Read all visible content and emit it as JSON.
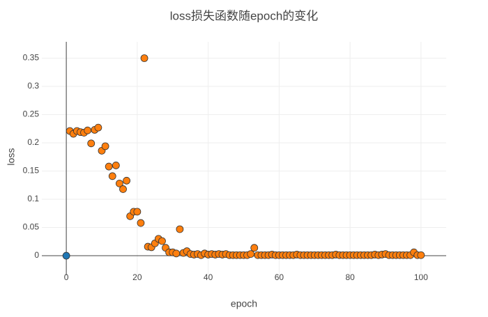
{
  "chart_data": {
    "type": "scatter",
    "title": "loss损失函数随epoch的变化",
    "x_label": "epoch",
    "y_label": "loss",
    "xlim": [
      -6.9,
      107.1
    ],
    "ylim": [
      -0.0345,
      0.379
    ],
    "xticks": [
      0,
      20,
      40,
      60,
      80,
      100
    ],
    "yticks": [
      0,
      0.05,
      0.1,
      0.15,
      0.2,
      0.25,
      0.3,
      0.35
    ],
    "grid": true,
    "series": [
      {
        "color": "#1f77b4",
        "x": [
          0
        ],
        "values": [
          0
        ]
      },
      {
        "color": "#ff7f0e",
        "x": [
          1,
          2,
          3,
          4,
          5,
          6,
          7,
          8,
          9,
          10,
          11,
          12,
          13,
          14,
          15,
          16,
          17,
          18,
          19,
          20,
          21,
          22,
          23,
          24,
          25,
          26,
          27,
          28,
          29,
          30,
          31,
          32,
          33,
          34,
          35,
          36,
          37,
          38,
          39,
          40,
          41,
          42,
          43,
          44,
          45,
          46,
          47,
          48,
          49,
          50,
          51,
          52,
          53,
          54,
          55,
          56,
          57,
          58,
          59,
          60,
          61,
          62,
          63,
          64,
          65,
          66,
          67,
          68,
          69,
          70,
          71,
          72,
          73,
          74,
          75,
          76,
          77,
          78,
          79,
          80,
          81,
          82,
          83,
          84,
          85,
          86,
          87,
          88,
          89,
          90,
          91,
          92,
          93,
          94,
          95,
          96,
          97,
          98,
          99,
          100
        ],
        "values": [
          0.221,
          0.216,
          0.221,
          0.219,
          0.218,
          0.222,
          0.199,
          0.223,
          0.227,
          0.186,
          0.194,
          0.158,
          0.141,
          0.16,
          0.128,
          0.118,
          0.133,
          0.07,
          0.078,
          0.078,
          0.058,
          0.35,
          0.016,
          0.015,
          0.022,
          0.03,
          0.026,
          0.014,
          0.006,
          0.006,
          0.004,
          0.047,
          0.005,
          0.008,
          0.003,
          0.002,
          0.003,
          0.001,
          0.004,
          0.002,
          0.003,
          0.002,
          0.003,
          0.002,
          0.003,
          0.001,
          0.001,
          0.001,
          0.001,
          0.001,
          0.001,
          0.003,
          0.014,
          0.001,
          0.001,
          0.001,
          0.001,
          0.002,
          0.001,
          0.001,
          0.001,
          0.001,
          0.001,
          0.001,
          0.002,
          0.001,
          0.001,
          0.001,
          0.001,
          0.001,
          0.001,
          0.001,
          0.001,
          0.001,
          0.001,
          0.002,
          0.001,
          0.001,
          0.001,
          0.001,
          0.001,
          0.001,
          0.001,
          0.001,
          0.001,
          0.001,
          0.002,
          0.001,
          0.002,
          0.003,
          0.001,
          0.001,
          0.001,
          0.001,
          0.001,
          0.001,
          0.001,
          0.006,
          0.001,
          0.001
        ]
      }
    ]
  }
}
